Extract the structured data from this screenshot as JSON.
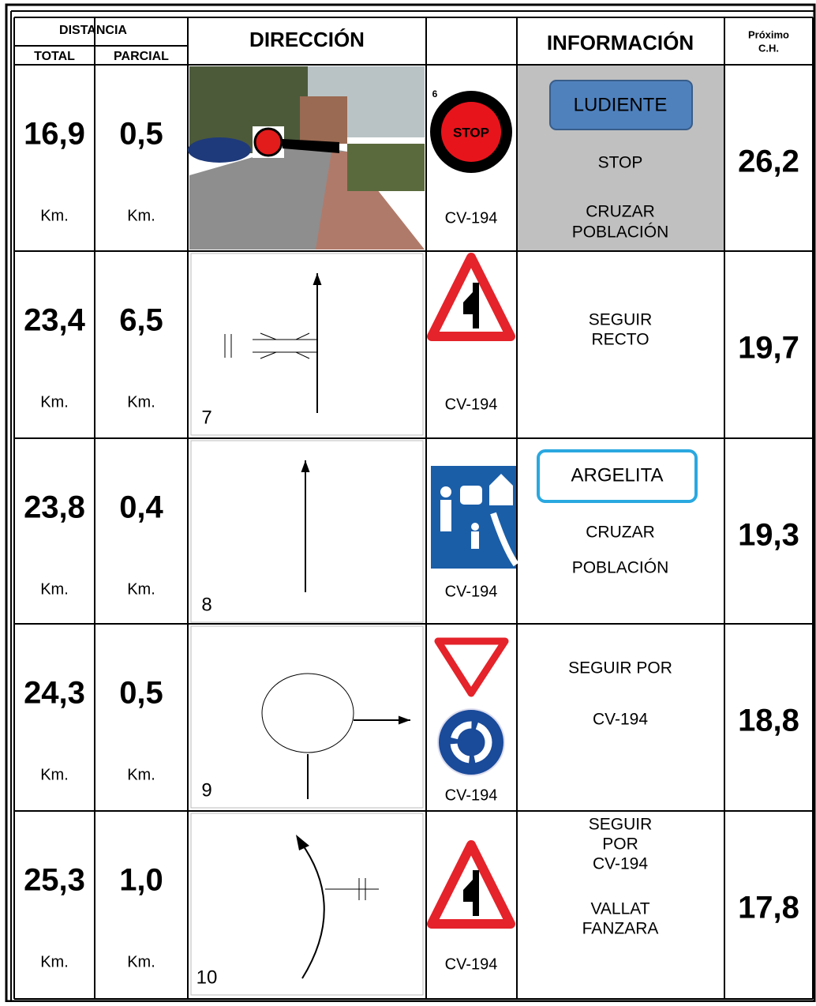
{
  "header": {
    "distancia": "DISTANCIA",
    "total": "TOTAL",
    "parcial": "PARCIAL",
    "direccion": "DIRECCIÓN",
    "informacion": "INFORMACIÓN",
    "proximo": [
      "Próximo",
      "C.H."
    ]
  },
  "rows": [
    {
      "total": "16,9",
      "total_unit": "Km.",
      "parcial": "0,5",
      "parcial_unit": "Km.",
      "sign_number": "6",
      "sign_text": "STOP",
      "road": "CV-194",
      "box": "LUDIENTE",
      "info": [
        "STOP",
        "CRUZAR",
        "POBLACIÓN"
      ],
      "proximo": "26,2"
    },
    {
      "total": "23,4",
      "total_unit": "Km.",
      "parcial": "6,5",
      "parcial_unit": "Km.",
      "diagram_number": "7",
      "road": "CV-194",
      "info": [
        "SEGUIR",
        "RECTO"
      ],
      "proximo": "19,7"
    },
    {
      "total": "23,8",
      "total_unit": "Km.",
      "parcial": "0,4",
      "parcial_unit": "Km.",
      "diagram_number": "8",
      "road": "CV-194",
      "box": "ARGELITA",
      "info": [
        "CRUZAR",
        "POBLACIÓN"
      ],
      "proximo": "19,3"
    },
    {
      "total": "24,3",
      "total_unit": "Km.",
      "parcial": "0,5",
      "parcial_unit": "Km.",
      "diagram_number": "9",
      "road": "CV-194",
      "info": [
        "SEGUIR POR",
        "CV-194"
      ],
      "proximo": "18,8"
    },
    {
      "total": "25,3",
      "total_unit": "Km.",
      "parcial": "1,0",
      "parcial_unit": "Km.",
      "diagram_number": "10",
      "road": "CV-194",
      "info": [
        "SEGUIR",
        "POR",
        "CV-194",
        "VALLAT",
        "FANZARA"
      ],
      "proximo": "17,8"
    }
  ]
}
